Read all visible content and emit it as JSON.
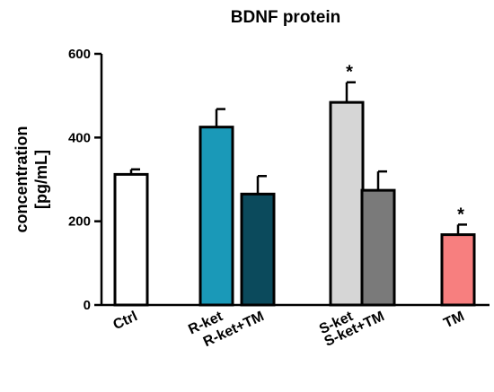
{
  "chart_data": {
    "type": "bar",
    "title": "BDNF protein",
    "ylabel_lines": [
      "concentration",
      "[pg/mL]"
    ],
    "ylim": [
      0,
      600
    ],
    "yticks": [
      0,
      200,
      400,
      600
    ],
    "grid": false,
    "legend": "none",
    "categories": [
      "Ctrl",
      "R-ket",
      "R-ket+TM",
      "S-ket",
      "S-ket+TM",
      "TM"
    ],
    "values": [
      312,
      425,
      265,
      484,
      274,
      168
    ],
    "errors": [
      12,
      43,
      43,
      48,
      45,
      24
    ],
    "significance": [
      "",
      "",
      "",
      "*",
      "",
      "*"
    ],
    "colors": [
      "#ffffff",
      "#1a99b8",
      "#0b4a5c",
      "#d6d6d6",
      "#7a7a7a",
      "#f77f7f"
    ]
  }
}
